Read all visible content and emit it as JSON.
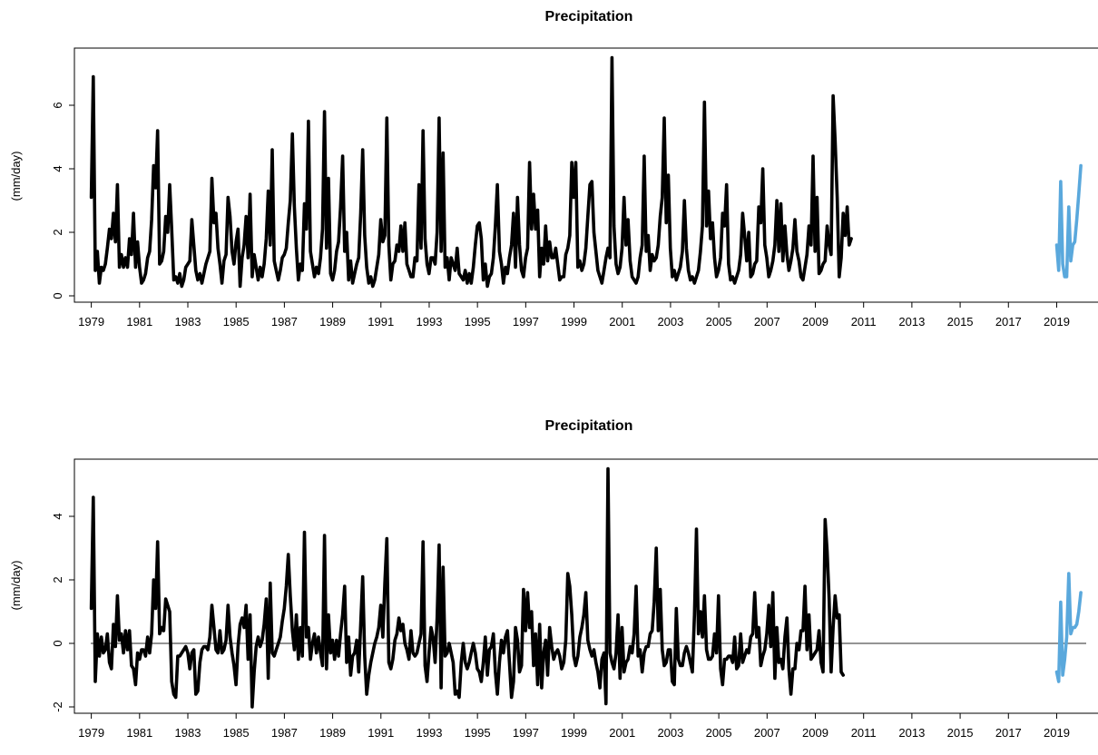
{
  "chart_data": [
    {
      "type": "line",
      "title": "Precipitation",
      "ylabel": "(mm/day)",
      "xlabel": "",
      "xlim": [
        1978.3,
        2020.9
      ],
      "ylim": [
        -0.2,
        7.8
      ],
      "yticks": [
        "0",
        "2",
        "4",
        "6"
      ],
      "xticks": [
        "1979",
        "1981",
        "1983",
        "1985",
        "1987",
        "1989",
        "1991",
        "1993",
        "1995",
        "1997",
        "1999",
        "2001",
        "2003",
        "2005",
        "2007",
        "2009",
        "2011",
        "2013",
        "2015",
        "2017",
        "2019"
      ],
      "reference_line": null,
      "series": [
        {
          "color": "#000000",
          "x_start": 1979.0,
          "x_step": 0.0833,
          "values": [
            3.1,
            6.9,
            0.8,
            1.4,
            0.4,
            0.9,
            0.8,
            1.0,
            1.5,
            2.1,
            1.8,
            2.6,
            1.7,
            3.5,
            0.9,
            1.3,
            0.9,
            1.2,
            0.9,
            1.8,
            1.3,
            2.6,
            0.9,
            1.7,
            0.9,
            0.4,
            0.5,
            0.7,
            1.2,
            1.4,
            2.4,
            4.1,
            3.4,
            5.2,
            1.0,
            1.1,
            1.4,
            2.5,
            2.0,
            3.5,
            2.1,
            0.5,
            0.6,
            0.4,
            0.7,
            0.3,
            0.5,
            0.9,
            1.0,
            1.1,
            2.4,
            1.6,
            0.8,
            0.5,
            0.7,
            0.4,
            0.7,
            1.0,
            1.2,
            1.4,
            3.7,
            2.3,
            2.6,
            1.5,
            1.0,
            0.4,
            1.1,
            1.3,
            3.1,
            2.5,
            1.4,
            1.0,
            1.7,
            2.1,
            0.3,
            1.2,
            1.6,
            2.5,
            1.2,
            3.2,
            0.6,
            1.3,
            0.9,
            0.5,
            0.9,
            0.6,
            1.0,
            1.8,
            3.3,
            1.6,
            4.6,
            1.1,
            0.8,
            0.5,
            0.8,
            1.2,
            1.3,
            1.5,
            2.3,
            3.0,
            5.1,
            2.8,
            1.5,
            0.5,
            1.0,
            0.8,
            2.9,
            2.1,
            5.5,
            1.4,
            1.0,
            0.6,
            0.9,
            0.7,
            1.2,
            2.1,
            5.8,
            1.5,
            3.7,
            0.7,
            0.5,
            0.8,
            1.4,
            1.7,
            2.8,
            4.4,
            1.4,
            2.0,
            0.5,
            1.1,
            0.4,
            0.7,
            1.0,
            1.2,
            2.6,
            4.6,
            1.9,
            0.9,
            0.4,
            0.6,
            0.3,
            0.5,
            0.9,
            1.3,
            2.4,
            1.7,
            1.9,
            5.6,
            1.6,
            0.5,
            1.0,
            1.1,
            1.6,
            1.4,
            2.2,
            1.4,
            2.3,
            1.0,
            0.8,
            0.6,
            0.6,
            1.2,
            1.1,
            3.5,
            1.5,
            5.2,
            1.8,
            1.0,
            0.7,
            1.2,
            1.2,
            1.0,
            2.0,
            5.6,
            1.4,
            4.5,
            0.9,
            1.2,
            0.5,
            1.2,
            1.0,
            0.8,
            1.5,
            0.7,
            0.6,
            0.5,
            0.8,
            0.4,
            0.7,
            0.4,
            0.9,
            1.6,
            2.2,
            2.3,
            1.8,
            0.5,
            1.0,
            0.3,
            0.6,
            0.7,
            1.2,
            2.2,
            3.5,
            1.4,
            1.0,
            0.4,
            0.9,
            0.7,
            1.2,
            1.6,
            2.6,
            0.9,
            3.1,
            1.6,
            0.8,
            0.6,
            1.2,
            1.5,
            4.2,
            2.1,
            3.2,
            2.1,
            2.7,
            0.6,
            1.5,
            1.0,
            2.2,
            1.1,
            1.7,
            1.2,
            1.2,
            1.5,
            1.0,
            0.5,
            0.6,
            0.6,
            1.3,
            1.5,
            1.9,
            4.2,
            3.1,
            4.2,
            0.9,
            1.1,
            0.8,
            1.0,
            1.5,
            2.5,
            3.5,
            3.6,
            2.0,
            1.4,
            0.8,
            0.6,
            0.4,
            0.8,
            1.2,
            1.5,
            1.2,
            7.5,
            2.2,
            1.0,
            0.7,
            0.9,
            1.5,
            3.1,
            1.6,
            2.4,
            1.1,
            0.6,
            0.5,
            0.4,
            0.6,
            1.2,
            1.6,
            4.4,
            1.4,
            1.9,
            0.8,
            1.3,
            1.1,
            1.2,
            1.6,
            2.5,
            3.1,
            5.6,
            2.3,
            3.8,
            1.5,
            0.6,
            0.8,
            0.5,
            0.7,
            0.9,
            1.4,
            3.0,
            1.5,
            0.8,
            0.5,
            0.6,
            0.4,
            0.6,
            0.8,
            1.4,
            2.2,
            6.1,
            2.2,
            3.3,
            1.8,
            2.3,
            1.2,
            0.6,
            0.8,
            1.2,
            2.6,
            2.2,
            3.5,
            1.0,
            0.5,
            0.6,
            0.4,
            0.6,
            0.8,
            1.3,
            2.6,
            1.9,
            1.1,
            2.0,
            0.6,
            0.7,
            1.0,
            1.1,
            2.8,
            2.3,
            4.0,
            1.6,
            1.2,
            0.6,
            0.8,
            1.1,
            1.6,
            3.0,
            1.4,
            2.9,
            1.1,
            2.2,
            1.3,
            0.8,
            1.1,
            1.5,
            2.4,
            1.4,
            1.1,
            0.6,
            0.5,
            0.9,
            1.3,
            2.2,
            1.6,
            4.4,
            1.4,
            3.1,
            0.7,
            0.8,
            1.0,
            1.1,
            2.2,
            1.6,
            1.3,
            6.3,
            4.9,
            3.1,
            0.6,
            1.2,
            2.6,
            1.9,
            2.8,
            1.6,
            1.8
          ]
        },
        {
          "color": "#5aa8dc",
          "x_start": 2019.0,
          "x_step": 0.0833,
          "values": [
            1.6,
            0.8,
            3.6,
            1.0,
            0.6,
            0.6,
            2.8,
            1.1,
            1.6,
            1.7,
            2.4,
            3.2,
            4.1
          ]
        }
      ]
    },
    {
      "type": "line",
      "title": "Precipitation",
      "ylabel": "(mm/day)",
      "xlabel": "",
      "xlim": [
        1978.3,
        2020.9
      ],
      "ylim": [
        -2.2,
        5.8
      ],
      "yticks": [
        "-2",
        "0",
        "2",
        "4"
      ],
      "xticks": [
        "1979",
        "1981",
        "1983",
        "1985",
        "1987",
        "1989",
        "1991",
        "1993",
        "1995",
        "1997",
        "1999",
        "2001",
        "2003",
        "2005",
        "2007",
        "2009",
        "2011",
        "2013",
        "2015",
        "2017",
        "2019"
      ],
      "reference_line": 0,
      "series": [
        {
          "color": "#000000",
          "x_start": 1979.0,
          "x_step": 0.0833,
          "values": [
            1.1,
            4.6,
            -1.2,
            0.3,
            -0.4,
            0.2,
            -0.3,
            -0.2,
            0.3,
            -0.6,
            -0.8,
            0.6,
            -0.1,
            1.5,
            0.1,
            0.3,
            -0.3,
            0.4,
            -0.2,
            0.4,
            -0.7,
            -0.8,
            -1.3,
            -0.3,
            -0.5,
            -0.2,
            -0.2,
            -0.4,
            0.2,
            -0.3,
            0.3,
            2.0,
            1.1,
            3.2,
            0.3,
            0.5,
            0.4,
            1.4,
            1.2,
            1.0,
            -1.2,
            -1.6,
            -1.7,
            -0.4,
            -0.4,
            -0.3,
            -0.2,
            -0.1,
            -0.3,
            -0.8,
            -0.3,
            -0.2,
            -1.6,
            -1.5,
            -0.6,
            -0.2,
            -0.1,
            -0.1,
            -0.2,
            0.2,
            1.2,
            0.5,
            -0.2,
            -0.3,
            0.4,
            -0.3,
            -0.2,
            0.1,
            1.2,
            0.2,
            -0.3,
            -0.7,
            -1.3,
            -0.1,
            0.6,
            0.8,
            0.5,
            1.2,
            -0.5,
            0.9,
            -2.0,
            -0.9,
            -0.1,
            0.2,
            -0.1,
            0.1,
            0.6,
            1.4,
            -1.1,
            1.9,
            -0.3,
            -0.4,
            -0.2,
            0.0,
            0.2,
            0.7,
            1.1,
            1.8,
            2.8,
            1.5,
            0.4,
            -0.2,
            0.9,
            -0.5,
            0.5,
            -0.4,
            3.5,
            0.2,
            0.5,
            -0.5,
            0.0,
            0.3,
            -0.3,
            0.2,
            -0.3,
            -0.7,
            3.4,
            -0.8,
            0.9,
            -0.3,
            0.1,
            -0.5,
            0.1,
            -0.4,
            0.3,
            0.9,
            1.8,
            -0.6,
            0.2,
            -1.0,
            -0.4,
            -0.3,
            0.1,
            -0.9,
            0.6,
            2.1,
            -0.4,
            -1.6,
            -1.0,
            -0.6,
            -0.3,
            0.0,
            0.2,
            0.5,
            1.2,
            0.2,
            1.9,
            3.3,
            -0.6,
            -0.8,
            -0.5,
            0.1,
            0.3,
            0.8,
            0.4,
            0.6,
            0.0,
            -0.2,
            -0.5,
            0.4,
            -0.3,
            -0.4,
            -0.3,
            0.0,
            0.3,
            3.2,
            -0.7,
            -1.2,
            -0.3,
            0.5,
            0.2,
            -0.6,
            0.8,
            3.1,
            -1.4,
            2.4,
            -0.4,
            -0.3,
            0.0,
            -0.3,
            -0.6,
            -1.6,
            -1.5,
            -1.7,
            -0.6,
            0.0,
            -0.6,
            -0.8,
            -0.6,
            -0.3,
            0.0,
            -0.3,
            -0.8,
            -0.9,
            -1.2,
            -0.6,
            0.2,
            -1.0,
            -0.2,
            -0.1,
            0.3,
            -0.9,
            -1.6,
            -0.6,
            0.1,
            -0.3,
            0.2,
            0.4,
            -0.6,
            -1.7,
            -1.2,
            0.5,
            0.1,
            -0.9,
            -0.7,
            1.7,
            0.4,
            1.6,
            0.5,
            1.0,
            -0.7,
            0.3,
            -1.3,
            0.6,
            -1.4,
            -0.3,
            0.1,
            -1.0,
            0.5,
            -0.1,
            -0.5,
            -0.3,
            -0.2,
            -0.4,
            -0.8,
            -0.6,
            0.1,
            2.2,
            1.8,
            0.9,
            -0.4,
            -0.7,
            -0.4,
            0.2,
            0.5,
            0.9,
            1.6,
            0.1,
            -0.2,
            -0.4,
            -0.2,
            -0.6,
            -0.9,
            -1.4,
            -0.5,
            -0.3,
            -1.9,
            5.5,
            -0.3,
            -0.6,
            -0.8,
            -0.3,
            0.9,
            -1.1,
            0.5,
            -0.9,
            -0.6,
            -0.5,
            -0.1,
            -0.3,
            0.3,
            1.8,
            -0.4,
            -0.2,
            -0.9,
            -0.3,
            -0.1,
            -0.1,
            0.3,
            0.4,
            1.3,
            3.0,
            0.4,
            1.7,
            -0.2,
            -0.7,
            -0.6,
            -0.2,
            -0.2,
            -1.2,
            -1.3,
            1.1,
            -0.5,
            -0.7,
            -0.7,
            -0.3,
            -0.1,
            -0.3,
            -0.6,
            -0.9,
            0.9,
            3.6,
            0.3,
            1.0,
            0.2,
            1.5,
            -0.2,
            -0.5,
            -0.5,
            -0.4,
            0.3,
            -0.3,
            1.5,
            -0.8,
            -1.3,
            -0.5,
            -0.5,
            -0.4,
            -0.4,
            -0.6,
            0.2,
            -0.8,
            -0.7,
            0.3,
            -0.6,
            -0.4,
            -0.2,
            -0.3,
            0.2,
            0.3,
            1.6,
            0.2,
            0.5,
            -0.7,
            -0.4,
            -0.2,
            0.3,
            1.2,
            -0.1,
            1.6,
            -1.1,
            0.5,
            -0.6,
            -0.5,
            -0.8,
            0.2,
            0.8,
            -0.8,
            -1.6,
            -0.8,
            -0.8,
            0.0,
            -0.2,
            0.4,
            0.4,
            1.8,
            -0.2,
            0.9,
            -0.5,
            -0.4,
            -0.3,
            -0.2,
            0.4,
            -0.6,
            -0.9,
            3.9,
            2.9,
            1.4,
            -0.9,
            0.5,
            1.5,
            0.8,
            0.9,
            -0.9,
            -1.0
          ]
        },
        {
          "color": "#5aa8dc",
          "x_start": 2019.0,
          "x_step": 0.0833,
          "values": [
            -0.9,
            -1.2,
            1.3,
            -1.0,
            -0.5,
            0.2,
            2.2,
            0.3,
            0.5,
            0.5,
            0.6,
            1.0,
            1.6
          ]
        }
      ]
    }
  ]
}
